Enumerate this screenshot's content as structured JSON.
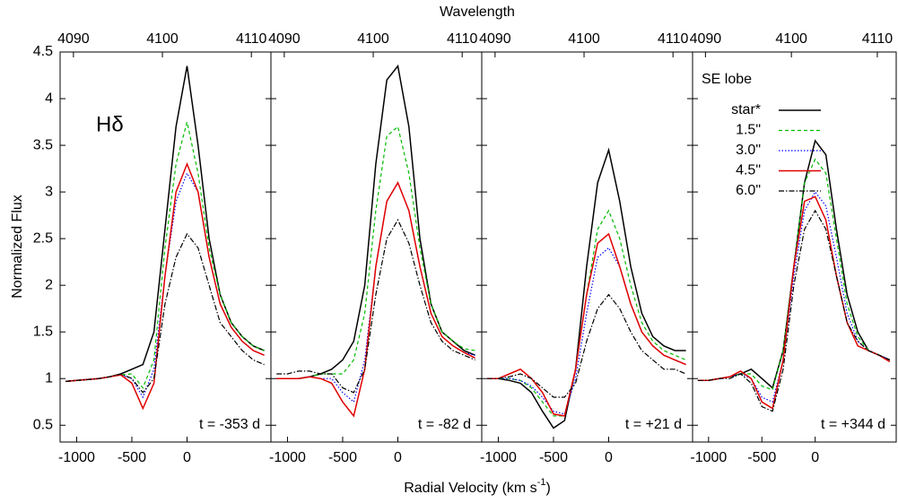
{
  "chart_data": [
    {
      "type": "line",
      "x2label": "Wavelength",
      "ylabel": "Normalized Flux",
      "xlabel": {
        "text": "Radial Velocity (km s",
        "sup": "-1",
        "tail": ")"
      },
      "annotation": "Hδ",
      "time_label": "t = -353 d",
      "xlim": [
        -1150,
        760
      ],
      "xticks": [
        -1000,
        -500,
        0
      ],
      "x2lim": [
        4088.5,
        4112.2
      ],
      "x2ticks": [
        4090,
        4100,
        4110
      ],
      "ylim": [
        0.32,
        4.5
      ],
      "yticks": [
        0.5,
        1,
        1.5,
        2,
        2.5,
        3,
        3.5,
        4,
        4.5
      ],
      "x": [
        -1100,
        -1000,
        -900,
        -800,
        -700,
        -600,
        -500,
        -400,
        -300,
        -200,
        -100,
        0,
        100,
        200,
        300,
        400,
        500,
        600,
        700
      ],
      "series": [
        {
          "name": "star*",
          "color": "#000000",
          "dash": "solid",
          "values": [
            0.97,
            0.98,
            0.99,
            1.0,
            1.02,
            1.05,
            1.1,
            1.15,
            1.5,
            2.6,
            3.7,
            4.35,
            3.5,
            2.5,
            1.9,
            1.6,
            1.45,
            1.35,
            1.3
          ]
        },
        {
          "name": "1.5\"",
          "color": "#00bb00",
          "dash": "dashed",
          "values": [
            0.97,
            0.98,
            0.99,
            1.0,
            1.02,
            1.04,
            1.05,
            0.9,
            1.2,
            2.4,
            3.3,
            3.75,
            3.2,
            2.4,
            1.9,
            1.6,
            1.45,
            1.35,
            1.3
          ]
        },
        {
          "name": "3.0\"",
          "color": "#0000ff",
          "dash": "dotted",
          "values": [
            0.97,
            0.98,
            0.99,
            1.0,
            1.02,
            1.04,
            1.0,
            0.8,
            1.1,
            2.1,
            2.9,
            3.2,
            3.0,
            2.3,
            1.8,
            1.55,
            1.4,
            1.3,
            1.25
          ]
        },
        {
          "name": "4.5\"",
          "color": "#e00000",
          "dash": "solid",
          "values": [
            0.97,
            0.98,
            0.99,
            1.0,
            1.02,
            1.04,
            0.95,
            0.68,
            0.95,
            2.1,
            3.0,
            3.3,
            3.0,
            2.3,
            1.8,
            1.55,
            1.4,
            1.3,
            1.25
          ]
        },
        {
          "name": "6.0\"",
          "color": "#000000",
          "dash": "dashdot",
          "values": [
            0.97,
            0.98,
            0.99,
            1.0,
            1.02,
            1.05,
            1.0,
            0.85,
            1.0,
            1.8,
            2.3,
            2.55,
            2.4,
            2.0,
            1.6,
            1.45,
            1.3,
            1.2,
            1.15
          ]
        }
      ]
    },
    {
      "type": "line",
      "time_label": "t = -82 d",
      "xlim": [
        -1150,
        760
      ],
      "xticks": [
        -1000,
        -500,
        0
      ],
      "x2lim": [
        4088.5,
        4112.2
      ],
      "x2ticks": [
        4090,
        4100,
        4110
      ],
      "ylim": [
        0.32,
        4.5
      ],
      "yticks": [
        0.5,
        1,
        1.5,
        2,
        2.5,
        3,
        3.5,
        4,
        4.5
      ],
      "x": [
        -1100,
        -1000,
        -900,
        -800,
        -700,
        -600,
        -500,
        -400,
        -300,
        -200,
        -100,
        0,
        100,
        200,
        300,
        400,
        500,
        600,
        700
      ],
      "series": [
        {
          "name": "star*",
          "color": "#000000",
          "dash": "solid",
          "values": [
            1.0,
            1.0,
            1.0,
            1.02,
            1.05,
            1.1,
            1.2,
            1.4,
            2.0,
            3.3,
            4.2,
            4.35,
            3.7,
            2.5,
            1.8,
            1.5,
            1.4,
            1.3,
            1.25
          ]
        },
        {
          "name": "1.5\"",
          "color": "#00bb00",
          "dash": "dashed",
          "values": [
            1.0,
            1.0,
            1.0,
            1.02,
            1.05,
            1.05,
            1.05,
            1.2,
            1.7,
            2.8,
            3.6,
            3.7,
            3.2,
            2.4,
            1.8,
            1.5,
            1.4,
            1.32,
            1.3
          ]
        },
        {
          "name": "3.0\"",
          "color": "#0000ff",
          "dash": "dotted",
          "values": [
            1.0,
            1.0,
            1.0,
            1.02,
            1.0,
            1.0,
            0.85,
            0.75,
            1.2,
            2.2,
            2.9,
            3.1,
            2.8,
            2.2,
            1.7,
            1.45,
            1.35,
            1.28,
            1.25
          ]
        },
        {
          "name": "4.5\"",
          "color": "#e00000",
          "dash": "solid",
          "values": [
            1.0,
            1.0,
            1.0,
            1.02,
            1.0,
            0.95,
            0.75,
            0.6,
            1.1,
            2.2,
            2.9,
            3.1,
            2.8,
            2.2,
            1.7,
            1.45,
            1.35,
            1.28,
            1.22
          ]
        },
        {
          "name": "6.0\"",
          "color": "#000000",
          "dash": "dashdot",
          "values": [
            1.05,
            1.05,
            1.08,
            1.08,
            1.05,
            1.05,
            0.9,
            0.85,
            1.1,
            1.9,
            2.5,
            2.7,
            2.45,
            2.0,
            1.6,
            1.4,
            1.3,
            1.25,
            1.2
          ]
        }
      ]
    },
    {
      "type": "line",
      "time_label": "t = +21 d",
      "xlim": [
        -1150,
        760
      ],
      "xticks": [
        -1000,
        -500,
        0
      ],
      "x2lim": [
        4088.5,
        4112.2
      ],
      "x2ticks": [
        4090,
        4100,
        4110
      ],
      "ylim": [
        0.32,
        4.5
      ],
      "yticks": [
        0.5,
        1,
        1.5,
        2,
        2.5,
        3,
        3.5,
        4,
        4.5
      ],
      "x": [
        -1100,
        -1000,
        -900,
        -800,
        -700,
        -600,
        -500,
        -400,
        -300,
        -200,
        -100,
        0,
        100,
        200,
        300,
        400,
        500,
        600,
        700
      ],
      "series": [
        {
          "name": "star*",
          "color": "#000000",
          "dash": "solid",
          "values": [
            1.0,
            1.0,
            0.98,
            0.95,
            0.85,
            0.65,
            0.47,
            0.55,
            1.1,
            2.2,
            3.1,
            3.45,
            2.9,
            2.2,
            1.7,
            1.45,
            1.35,
            1.3,
            1.3
          ]
        },
        {
          "name": "1.5\"",
          "color": "#00bb00",
          "dash": "dashed",
          "values": [
            1.0,
            1.0,
            1.0,
            0.98,
            0.9,
            0.75,
            0.6,
            0.6,
            1.1,
            1.9,
            2.6,
            2.8,
            2.5,
            2.0,
            1.6,
            1.4,
            1.3,
            1.25,
            1.2
          ]
        },
        {
          "name": "3.0\"",
          "color": "#0000ff",
          "dash": "dotted",
          "values": [
            1.0,
            1.0,
            1.0,
            0.98,
            0.92,
            0.8,
            0.65,
            0.62,
            1.0,
            1.7,
            2.3,
            2.4,
            2.2,
            1.8,
            1.5,
            1.35,
            1.25,
            1.2,
            1.15
          ]
        },
        {
          "name": "4.5\"",
          "color": "#e00000",
          "dash": "solid",
          "values": [
            1.0,
            1.0,
            1.05,
            1.1,
            1.0,
            0.85,
            0.62,
            0.6,
            1.1,
            1.9,
            2.45,
            2.55,
            2.2,
            1.8,
            1.5,
            1.35,
            1.25,
            1.2,
            1.15
          ]
        },
        {
          "name": "6.0\"",
          "color": "#000000",
          "dash": "dashdot",
          "values": [
            1.0,
            1.0,
            1.02,
            1.05,
            1.0,
            0.9,
            0.8,
            0.8,
            0.95,
            1.4,
            1.75,
            1.9,
            1.75,
            1.5,
            1.3,
            1.2,
            1.1,
            1.1,
            1.05
          ]
        }
      ]
    },
    {
      "type": "line",
      "time_label": "t = +344 d",
      "legend": "upper right",
      "legend_title": "SE lobe",
      "xlim": [
        -1150,
        760
      ],
      "xticks": [
        -1000,
        -500,
        0
      ],
      "x2lim": [
        4088.5,
        4112.2
      ],
      "x2ticks": [
        4090,
        4100,
        4110
      ],
      "ylim": [
        0.32,
        4.5
      ],
      "yticks": [
        0.5,
        1,
        1.5,
        2,
        2.5,
        3,
        3.5,
        4,
        4.5
      ],
      "x": [
        -1100,
        -1000,
        -900,
        -800,
        -700,
        -600,
        -500,
        -400,
        -300,
        -200,
        -100,
        0,
        100,
        200,
        300,
        400,
        500,
        600,
        700
      ],
      "series": [
        {
          "name": "star*",
          "color": "#000000",
          "dash": "solid",
          "values": [
            0.98,
            0.98,
            1.0,
            1.02,
            1.05,
            1.1,
            1.0,
            0.9,
            1.3,
            2.2,
            3.1,
            3.55,
            3.4,
            2.6,
            1.9,
            1.5,
            1.3,
            1.25,
            1.2
          ]
        },
        {
          "name": "1.5\"",
          "color": "#00bb00",
          "dash": "dashed",
          "values": [
            0.98,
            0.98,
            1.0,
            1.02,
            1.05,
            1.05,
            0.92,
            0.88,
            1.3,
            2.2,
            3.1,
            3.35,
            3.2,
            2.5,
            1.8,
            1.45,
            1.3,
            1.25,
            1.2
          ]
        },
        {
          "name": "3.0\"",
          "color": "#0000ff",
          "dash": "dotted",
          "values": [
            0.98,
            0.98,
            1.0,
            1.02,
            1.05,
            1.0,
            0.8,
            0.75,
            1.2,
            2.1,
            2.8,
            3.0,
            2.85,
            2.3,
            1.7,
            1.4,
            1.3,
            1.25,
            1.2
          ]
        },
        {
          "name": "4.5\"",
          "color": "#e00000",
          "dash": "solid",
          "values": [
            0.98,
            0.98,
            1.0,
            1.02,
            1.08,
            1.0,
            0.75,
            0.68,
            1.2,
            2.2,
            2.9,
            2.95,
            2.7,
            2.1,
            1.6,
            1.35,
            1.3,
            1.25,
            1.18
          ]
        },
        {
          "name": "6.0\"",
          "color": "#000000",
          "dash": "dashdot",
          "values": [
            0.98,
            0.98,
            1.0,
            1.0,
            1.05,
            0.95,
            0.7,
            0.65,
            1.1,
            2.0,
            2.6,
            2.8,
            2.6,
            2.1,
            1.6,
            1.4,
            1.3,
            1.25,
            1.2
          ]
        }
      ]
    }
  ]
}
